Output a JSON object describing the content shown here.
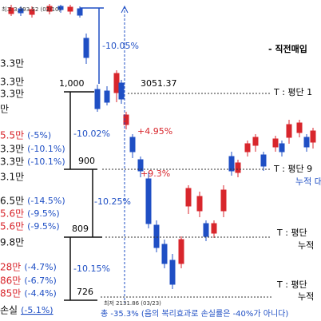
{
  "header": {
    "high_label": "최고 3,393.52 (02/10)",
    "right_title": "-  직전매입"
  },
  "left_rows": [
    {
      "amount": "3.3만"
    },
    {
      "amount": "3.3만"
    },
    {
      "amount": "3.3만"
    },
    {
      "amount": "만"
    },
    {
      "amount": "5.5만",
      "pct": "(-5%)"
    },
    {
      "amount": "3.3만",
      "pct": "(-10.1%)"
    },
    {
      "amount": "3.3만",
      "pct": "(-10.1%)"
    },
    {
      "amount": "3.1만"
    },
    {
      "amount": "6.5만",
      "pct": "(-14.5%)"
    },
    {
      "amount": "5.6만",
      "pct": "(-9.5%)"
    },
    {
      "amount": "5.6만",
      "pct": "(-9.5%)"
    },
    {
      "amount": "9.8만"
    },
    {
      "amount": "28만",
      "pct": "(-4.7%)"
    },
    {
      "amount": "86만",
      "pct": "(-6.7%)"
    },
    {
      "amount": "85만",
      "pct": "(-4.4%)"
    },
    {
      "amount": "손실",
      "pct": "(-5.1%)"
    }
  ],
  "levels": [
    {
      "price": "1,000",
      "change": "-10.02%"
    },
    {
      "price": "900",
      "change": "-10.25%"
    },
    {
      "price": "809",
      "change": "-10.15%"
    },
    {
      "price": "726"
    }
  ],
  "annotations": {
    "first_drop": "-10.05%",
    "price_mark": "3051.37",
    "rise_1": "+4.95%",
    "rise_2": "+9.3%",
    "low_label": "최저 2131.86 (03/23)",
    "total": "총 -35.3% (음의 복리효과로 손실률은 -40%가 아니다)"
  },
  "right_notes": [
    "T : 평단 1",
    "T : 평단 9",
    "누적 대",
    "T : 평단",
    "누적",
    "T : 평단",
    "누적"
  ]
}
